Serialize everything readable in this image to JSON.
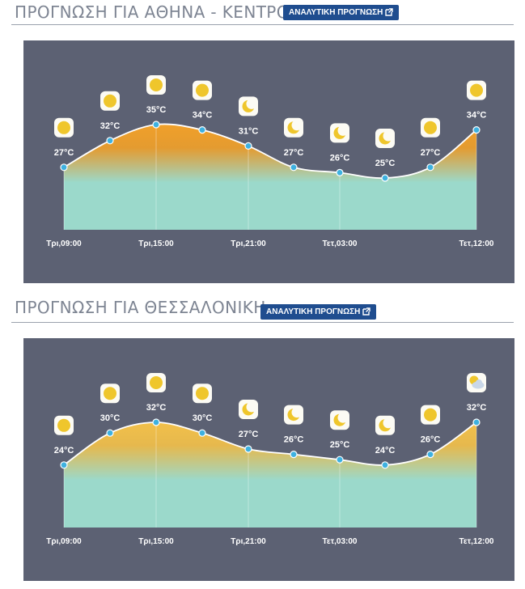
{
  "forecasts": [
    {
      "title": "ΠΡΟΓΝΩΣΗ ΓΙΑ ΑΘΗΝΑ - ΚΕΝΤΡΟ",
      "button_label": "ΑΝΑΛΥΤΙΚΗ ΠΡΟΓΝΩΣΗ",
      "button_icon": "external-link-icon",
      "chart_data": {
        "type": "area",
        "unit": "°C",
        "temps": [
          27,
          32,
          35,
          34,
          31,
          27,
          26,
          25,
          27,
          34
        ],
        "temp_labels": [
          "27°C",
          "32°C",
          "35°C",
          "34°C",
          "31°C",
          "27°C",
          "26°C",
          "25°C",
          "27°C",
          "34°C"
        ],
        "icons": [
          "sun-icon",
          "sun-icon",
          "sun-icon",
          "sun-icon",
          "moon-icon",
          "moon-icon",
          "moon-icon",
          "moon-icon",
          "sun-icon",
          "sun-icon"
        ],
        "x_ticks": [
          "Τρι,09:00",
          "Τρι,15:00",
          "Τρι,21:00",
          "Τετ,03:00",
          "Τετ,12:00"
        ],
        "colors": {
          "panel": "#5c6173",
          "hot": "#f0a02a",
          "base": "#9bd9cb",
          "point": "#3eb1e0"
        }
      }
    },
    {
      "title": "ΠΡΟΓΝΩΣΗ ΓΙΑ ΘΕΣΣΑΛΟΝΙΚΗ",
      "button_label": "ΑΝΑΛΥΤΙΚΗ ΠΡΟΓΝΩΣΗ",
      "button_icon": "external-link-icon",
      "chart_data": {
        "type": "area",
        "unit": "°C",
        "temps": [
          24,
          30,
          32,
          30,
          27,
          26,
          25,
          24,
          26,
          32
        ],
        "temp_labels": [
          "24°C",
          "30°C",
          "32°C",
          "30°C",
          "27°C",
          "26°C",
          "25°C",
          "24°C",
          "26°C",
          "32°C"
        ],
        "icons": [
          "sun-icon",
          "sun-icon",
          "sun-icon",
          "sun-icon",
          "moon-icon",
          "moon-icon",
          "moon-icon",
          "moon-icon",
          "sun-icon",
          "partly-cloudy-icon"
        ],
        "x_ticks": [
          "Τρι,09:00",
          "Τρι,15:00",
          "Τρι,21:00",
          "Τετ,03:00",
          "Τετ,12:00"
        ],
        "colors": {
          "panel": "#5c6173",
          "hot": "#f2c04a",
          "base": "#9bd9cb",
          "point": "#3eb1e0"
        }
      }
    }
  ]
}
